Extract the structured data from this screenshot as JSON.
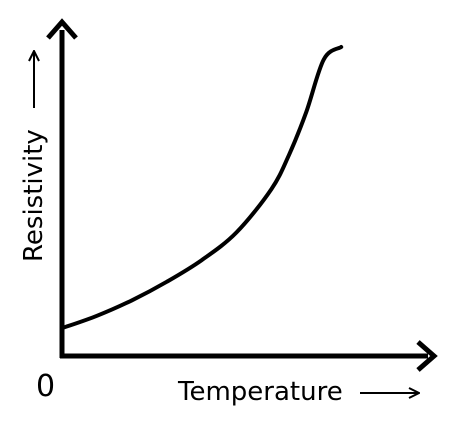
{
  "chart_data": {
    "type": "line",
    "xlabel": "Temperature",
    "ylabel": "Resistivity",
    "origin_label": "0",
    "xlim": [
      0,
      1
    ],
    "ylim": [
      0,
      1
    ],
    "grid": false,
    "series": [
      {
        "x": [
          0.0,
          0.1,
          0.2,
          0.3,
          0.4,
          0.5,
          0.6,
          0.65,
          0.7,
          0.75,
          0.8
        ],
        "y": [
          0.09,
          0.13,
          0.18,
          0.24,
          0.31,
          0.4,
          0.54,
          0.65,
          0.79,
          0.96,
          1.0
        ]
      }
    ]
  }
}
